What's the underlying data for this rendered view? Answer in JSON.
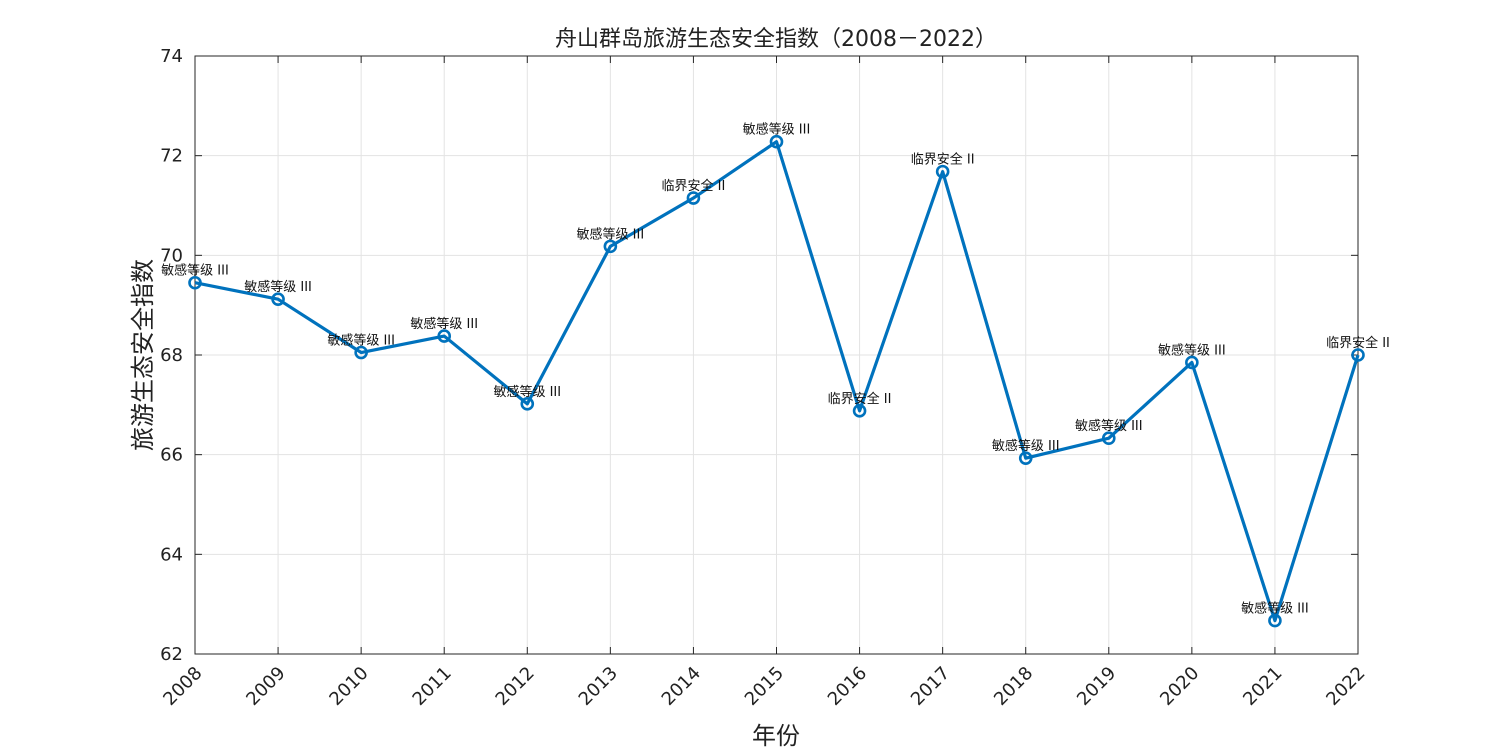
{
  "chart_data": {
    "type": "line",
    "title": "舟山群岛旅游生态安全指数（2008－2022）",
    "xlabel": "年份",
    "ylabel": "旅游生态安全指数",
    "x": [
      "2008",
      "2009",
      "2010",
      "2011",
      "2012",
      "2013",
      "2014",
      "2015",
      "2016",
      "2017",
      "2018",
      "2019",
      "2020",
      "2021",
      "2022"
    ],
    "series": [
      {
        "values": [
          69.45,
          69.12,
          68.05,
          68.38,
          67.02,
          70.18,
          71.15,
          72.28,
          66.88,
          71.68,
          65.93,
          66.33,
          67.85,
          62.67,
          68.0
        ],
        "labels": [
          "敏感等级 III",
          "敏感等级 III",
          "敏感等级 III",
          "敏感等级 III",
          "敏感等级 III",
          "敏感等级 III",
          "临界安全 II",
          "敏感等级 III",
          "临界安全 II",
          "临界安全 II",
          "敏感等级 III",
          "敏感等级 III",
          "敏感等级 III",
          "敏感等级 III",
          "临界安全 II"
        ],
        "color": "#0072BD",
        "marker": "circle"
      }
    ],
    "ylim": [
      62,
      74
    ],
    "yticks": [
      62,
      64,
      66,
      68,
      70,
      72,
      74
    ],
    "grid": true,
    "legend": "none"
  }
}
